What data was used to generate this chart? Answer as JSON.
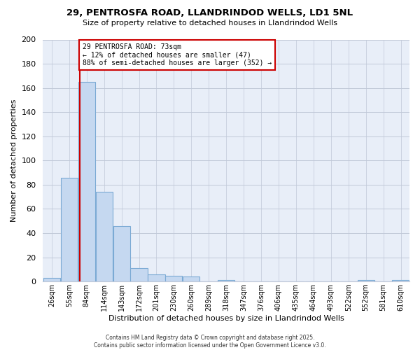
{
  "title_line1": "29, PENTROSFA ROAD, LLANDRINDOD WELLS, LD1 5NL",
  "title_line2": "Size of property relative to detached houses in Llandrindod Wells",
  "xlabel": "Distribution of detached houses by size in Llandrindod Wells",
  "ylabel": "Number of detached properties",
  "bar_labels": [
    "26sqm",
    "55sqm",
    "84sqm",
    "114sqm",
    "143sqm",
    "172sqm",
    "201sqm",
    "230sqm",
    "260sqm",
    "289sqm",
    "318sqm",
    "347sqm",
    "376sqm",
    "406sqm",
    "435sqm",
    "464sqm",
    "493sqm",
    "522sqm",
    "552sqm",
    "581sqm",
    "610sqm"
  ],
  "bar_values": [
    3,
    86,
    165,
    74,
    46,
    11,
    6,
    5,
    4,
    0,
    1,
    0,
    0,
    0,
    0,
    0,
    0,
    0,
    1,
    0,
    1
  ],
  "bar_color": "#c5d8f0",
  "bar_edge_color": "#7baad4",
  "bin_edges": [
    26,
    55,
    84,
    114,
    143,
    172,
    201,
    230,
    260,
    289,
    318,
    347,
    376,
    406,
    435,
    464,
    493,
    522,
    552,
    581,
    610
  ],
  "ylim": [
    0,
    200
  ],
  "yticks": [
    0,
    20,
    40,
    60,
    80,
    100,
    120,
    140,
    160,
    180,
    200
  ],
  "reference_line_x": 73,
  "annotation_text": "29 PENTROSFA ROAD: 73sqm\n← 12% of detached houses are smaller (47)\n88% of semi-detached houses are larger (352) →",
  "annotation_box_facecolor": "#ffffff",
  "annotation_border_color": "#cc0000",
  "ref_line_color": "#cc0000",
  "background_color": "#ffffff",
  "plot_bg_color": "#e8eef8",
  "grid_color": "#c0c8d8",
  "footer_line1": "Contains HM Land Registry data © Crown copyright and database right 2025.",
  "footer_line2": "Contains public sector information licensed under the Open Government Licence v3.0."
}
